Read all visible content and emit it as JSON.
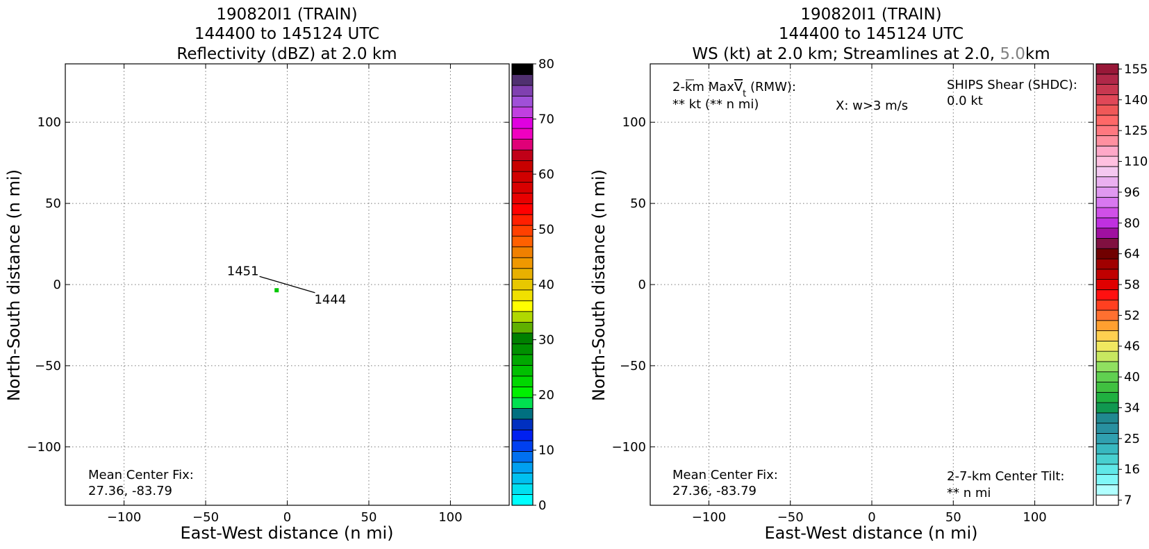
{
  "chart_data": [
    {
      "type": "scatter",
      "title_lines": [
        "190820I1 (TRAIN)",
        "144400 to 145124 UTC",
        "Reflectivity (dBZ) at 2.0 km"
      ],
      "xlabel": "East-West distance (n mi)",
      "ylabel": "North-South distance (n mi)",
      "xlim": [
        -136,
        136
      ],
      "ylim": [
        -136,
        136
      ],
      "xticks": [
        -100,
        -50,
        0,
        50,
        100
      ],
      "yticks": [
        -100,
        -50,
        0,
        50,
        100
      ],
      "xtick_labels": [
        "−100",
        "−50",
        "0",
        "50",
        "100"
      ],
      "ytick_labels": [
        "−100",
        "−50",
        "0",
        "50",
        "100"
      ],
      "grid": true,
      "track": {
        "start_label": "1451",
        "end_label": "1444",
        "start": [
          -17,
          5
        ],
        "end": [
          17,
          -5
        ],
        "color": "#000000",
        "label_color": "#666666"
      },
      "center_marker": {
        "x": -6.5,
        "y": -3.5,
        "color": "#00c800"
      },
      "annotations": {
        "mean_center_title": "Mean Center Fix:",
        "mean_center_value": "27.36, -83.79"
      },
      "colorbar": {
        "min": 0,
        "max": 80,
        "tick_values": [
          0,
          10,
          20,
          30,
          40,
          50,
          60,
          70,
          80
        ],
        "tick_labels": [
          "0",
          "10",
          "20",
          "30",
          "40",
          "50",
          "60",
          "70",
          "80"
        ],
        "colors": [
          "#00ffff",
          "#00e0f0",
          "#00c0f0",
          "#00a0f0",
          "#0070f0",
          "#0040f0",
          "#0020f0",
          "#0030c0",
          "#007080",
          "#00e050",
          "#00f000",
          "#00d800",
          "#00c000",
          "#00a800",
          "#009000",
          "#008000",
          "#60b000",
          "#b0d800",
          "#ffff00",
          "#f0e000",
          "#e8c800",
          "#e8b000",
          "#f09800",
          "#f08000",
          "#ff6000",
          "#ff4000",
          "#ff2000",
          "#ff0000",
          "#e80000",
          "#d80000",
          "#d00000",
          "#c80000",
          "#c00018",
          "#e00078",
          "#f000c0",
          "#e000e0",
          "#c040e0",
          "#a050d8",
          "#8040b0",
          "#503070",
          "#000000"
        ]
      }
    },
    {
      "type": "scatter",
      "title_lines": [
        "190820I1 (TRAIN)",
        "144400 to 145124 UTC"
      ],
      "title_line3": {
        "prefix": "WS (kt) at 2.0 km; Streamlines at 2.0, ",
        "highlight": "5.0",
        "suffix": "km",
        "highlight_color": "#808080"
      },
      "xlabel": "East-West distance (n mi)",
      "ylabel": "North-South distance (n mi)",
      "xlim": [
        -136,
        136
      ],
      "ylim": [
        -136,
        136
      ],
      "xticks": [
        -100,
        -50,
        0,
        50,
        100
      ],
      "yticks": [
        -100,
        -50,
        0,
        50,
        100
      ],
      "xtick_labels": [
        "−100",
        "−50",
        "0",
        "50",
        "100"
      ],
      "ytick_labels": [
        "−100",
        "−50",
        "0",
        "50",
        "100"
      ],
      "grid": true,
      "annotations": {
        "maxvt_prefix": "2-km Max",
        "maxvt_symbol": "V",
        "maxvt_subscript": "t",
        "maxvt_suffix": " (RMW):",
        "maxvt_value": "** kt (** n mi)",
        "w_note": "X: w>3 m/s",
        "shear_title": "SHIPS Shear (SHDC):",
        "shear_value": "0.0 kt",
        "shear_color": "#008000",
        "mean_center_title": "Mean Center Fix:",
        "mean_center_value": "27.36, -83.79",
        "tilt_title": "2-7-km Center Tilt:",
        "tilt_value": "** n mi",
        "tilt_color": "#ff0000"
      },
      "colorbar": {
        "n_bins": 43,
        "tick_labels": [
          "7",
          "16",
          "25",
          "34",
          "40",
          "46",
          "52",
          "58",
          "64",
          "80",
          "96",
          "110",
          "125",
          "140",
          "155"
        ],
        "tick_bin_index": [
          0,
          3,
          6,
          9,
          12,
          15,
          18,
          21,
          24,
          27,
          30,
          33,
          36,
          39,
          42
        ],
        "colors": [
          "#ffffff",
          "#b0ffff",
          "#80f8f8",
          "#60e8e8",
          "#48d0d0",
          "#38b8c0",
          "#30a0b0",
          "#2890a0",
          "#208890",
          "#109850",
          "#20b040",
          "#40c040",
          "#60d050",
          "#90e060",
          "#c8e860",
          "#f0e860",
          "#ffd050",
          "#ffa030",
          "#ff7030",
          "#ff4020",
          "#ff1010",
          "#e00000",
          "#c00000",
          "#a00000",
          "#700000",
          "#801040",
          "#a010a0",
          "#c030e0",
          "#d050e8",
          "#d878f0",
          "#e098f0",
          "#eab0f0",
          "#f4c8f0",
          "#ffc0e0",
          "#ffa8c8",
          "#ff90a0",
          "#ff7880",
          "#ff6868",
          "#f05858",
          "#e04858",
          "#c83850",
          "#b02848",
          "#981838"
        ]
      }
    }
  ]
}
